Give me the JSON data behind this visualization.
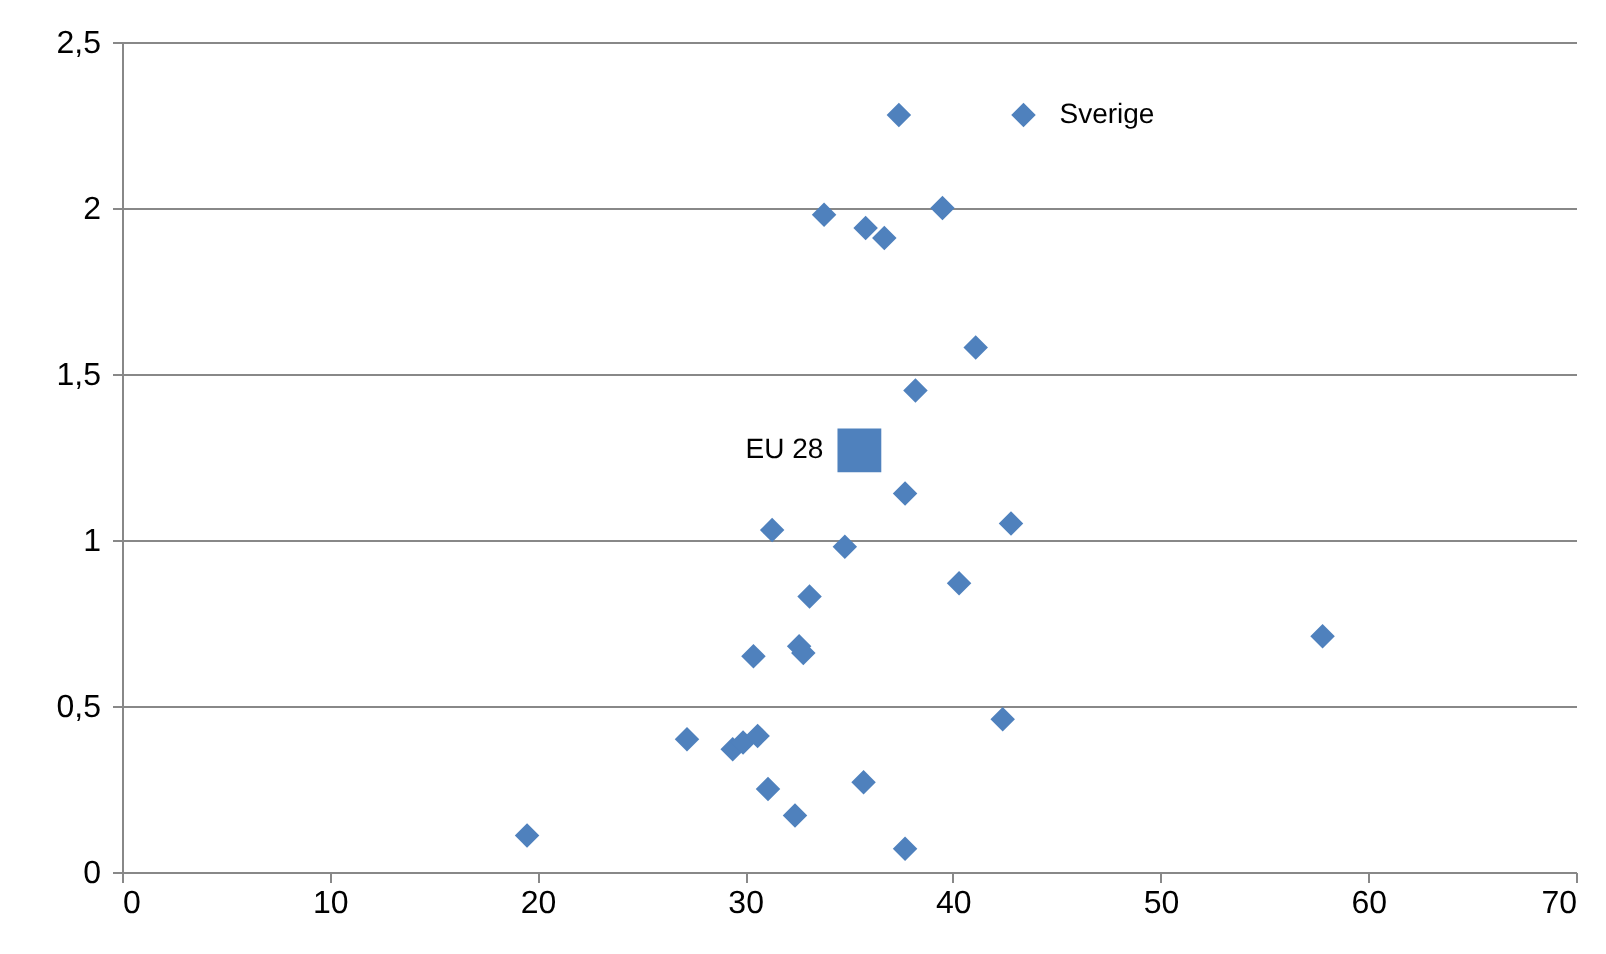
{
  "chart_data": {
    "type": "scatter",
    "series": [
      {
        "color": "#4f81bd",
        "marker": "diamond",
        "x": [
          19.5,
          27.2,
          29.4,
          29.9,
          30.6,
          31.1,
          32.4,
          35.7,
          37.7,
          42.4,
          30.4,
          32.6,
          32.8,
          33.1,
          34.8,
          31.3,
          37.7,
          42.8,
          40.3,
          57.8,
          38.2,
          41.1,
          33.8,
          35.8,
          36.7,
          39.5,
          37.4,
          43.4
        ],
        "values": [
          0.11,
          0.4,
          0.37,
          0.39,
          0.41,
          0.25,
          0.17,
          0.27,
          0.07,
          0.46,
          0.65,
          0.68,
          0.66,
          0.83,
          0.98,
          1.03,
          1.14,
          1.05,
          0.87,
          0.71,
          1.45,
          1.58,
          1.98,
          1.94,
          1.91,
          2.0,
          2.28,
          2.28
        ]
      },
      {
        "color": "#4f81bd",
        "marker": "square",
        "x": [
          35.5
        ],
        "values": [
          1.27
        ]
      }
    ],
    "annotations": [
      {
        "text": "Sverige",
        "x": 43.4,
        "y": 2.28
      },
      {
        "text": "EU 28",
        "x": 35.5,
        "y": 1.27
      }
    ],
    "xlim": [
      0,
      70
    ],
    "xticks": [
      0,
      10,
      20,
      30,
      40,
      50,
      60,
      70
    ],
    "ylim": [
      0,
      2.5
    ],
    "yticks": [
      0,
      {
        "value": 0.5,
        "label": "0,5"
      },
      1,
      {
        "value": 1.5,
        "label": "1,5"
      },
      2,
      {
        "value": 2.5,
        "label": "2,5"
      }
    ],
    "grid": "y"
  }
}
